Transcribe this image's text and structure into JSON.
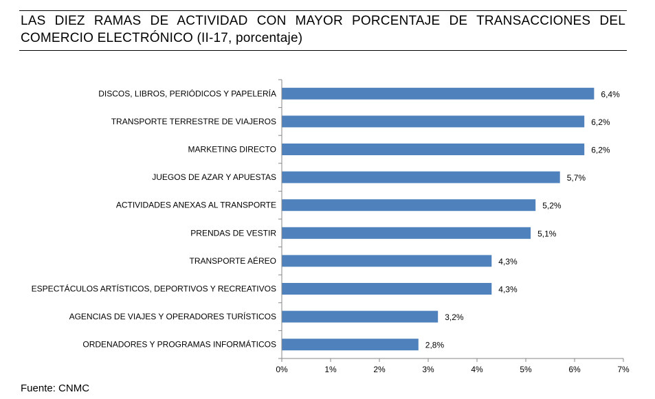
{
  "title": "LAS DIEZ RAMAS DE ACTIVIDAD CON MAYOR PORCENTAJE DE TRANSACCIONES DEL COMERCIO ELECTRÓNICO (II-17, porcentaje)",
  "source": "Fuente: CNMC",
  "colors": {
    "bar": "#4f81bd",
    "axis": "#868686"
  },
  "chart_data": {
    "type": "bar",
    "orientation": "horizontal",
    "title": "LAS DIEZ RAMAS DE ACTIVIDAD CON MAYOR PORCENTAJE DE TRANSACCIONES DEL COMERCIO ELECTRÓNICO (II-17, porcentaje)",
    "categories": [
      "DISCOS, LIBROS, PERIÓDICOS Y PAPELERÍA",
      "TRANSPORTE TERRESTRE DE VIAJEROS",
      "MARKETING DIRECTO",
      "JUEGOS DE AZAR Y APUESTAS",
      "ACTIVIDADES ANEXAS AL TRANSPORTE",
      "PRENDAS DE VESTIR",
      "TRANSPORTE AÉREO",
      "ESPECTÁCULOS ARTÍSTICOS, DEPORTIVOS Y RECREATIVOS",
      "AGENCIAS DE VIAJES Y OPERADORES TURÍSTICOS",
      "ORDENADORES Y PROGRAMAS INFORMÁTICOS"
    ],
    "values": [
      6.4,
      6.2,
      6.2,
      5.7,
      5.2,
      5.1,
      4.3,
      4.3,
      3.2,
      2.8
    ],
    "value_labels": [
      "6,4%",
      "6,2%",
      "6,2%",
      "5,7%",
      "5,2%",
      "5,1%",
      "4,3%",
      "4,3%",
      "3,2%",
      "2,8%"
    ],
    "xlim": [
      0,
      7
    ],
    "x_ticks": [
      0,
      1,
      2,
      3,
      4,
      5,
      6,
      7
    ],
    "x_tick_labels": [
      "0%",
      "1%",
      "2%",
      "3%",
      "4%",
      "5%",
      "6%",
      "7%"
    ],
    "xlabel": "",
    "ylabel": "",
    "grid": false,
    "legend": "none"
  }
}
